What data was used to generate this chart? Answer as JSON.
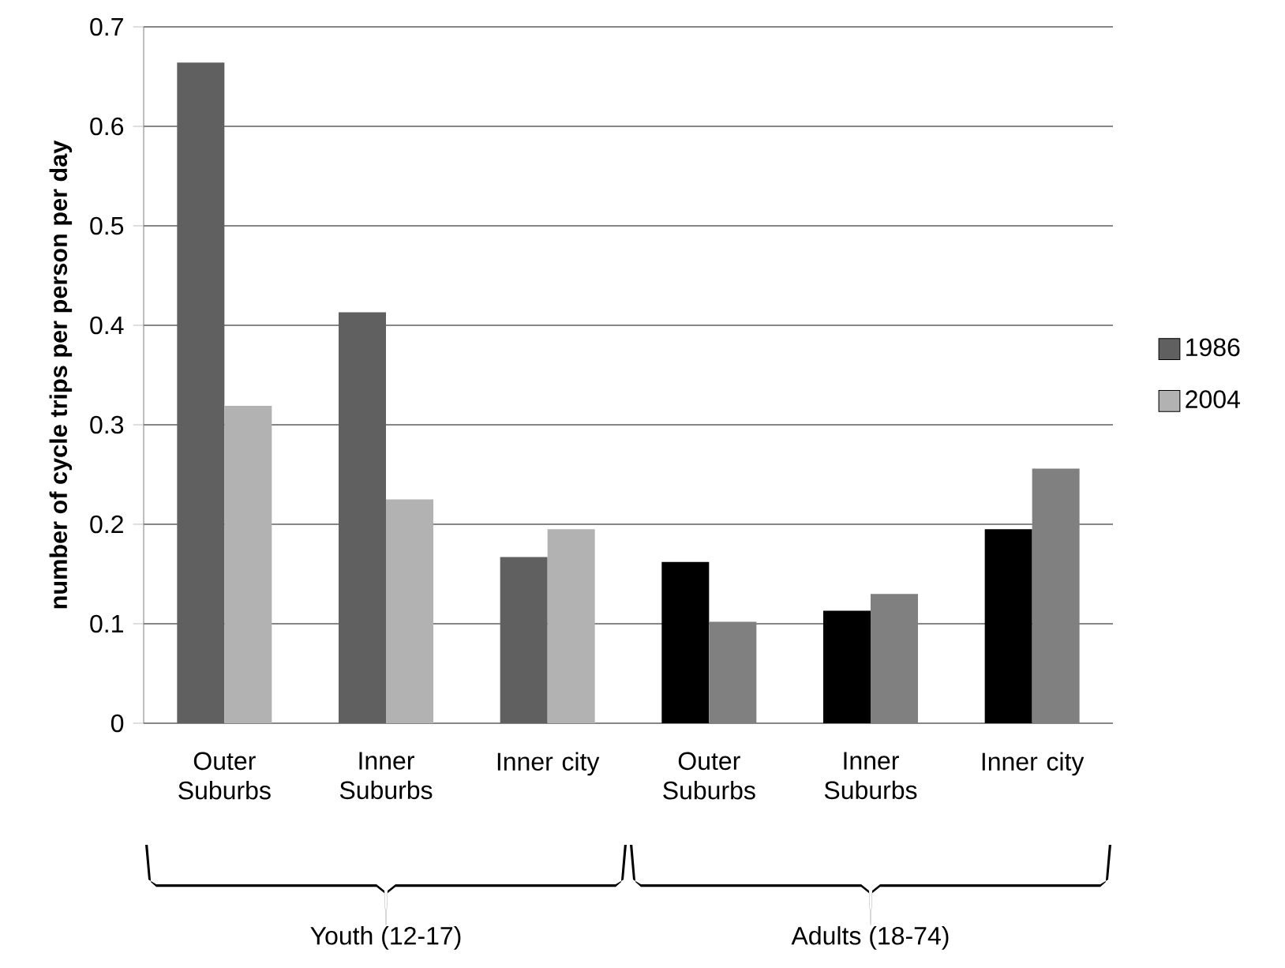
{
  "chart_data": {
    "type": "bar",
    "ylabel": "number of cycle  trips per person per day",
    "categories": [
      "Outer Suburbs",
      "Inner Suburbs",
      "Inner city",
      "Outer Suburbs",
      "Inner Suburbs",
      "Inner city"
    ],
    "series": [
      {
        "name": "1986",
        "color": "#606060",
        "colors": [
          "#606060",
          "#606060",
          "#606060",
          "#000000",
          "#000000",
          "#000000"
        ],
        "values": [
          0.664,
          0.413,
          0.167,
          0.162,
          0.113,
          0.195
        ]
      },
      {
        "name": "2004",
        "color": "#b2b2b2",
        "colors": [
          "#b2b2b2",
          "#b2b2b2",
          "#b2b2b2",
          "#808080",
          "#808080",
          "#808080"
        ],
        "values": [
          0.319,
          0.225,
          0.195,
          0.102,
          0.13,
          0.256
        ]
      }
    ],
    "ylim": [
      0,
      0.7
    ],
    "yticks": [
      0,
      0.1,
      0.2,
      0.3,
      0.4,
      0.5,
      0.6,
      0.7
    ],
    "grid": "y",
    "legend": "right",
    "annotations": [
      "Youth (12-17)",
      "Adults (18-74)"
    ]
  }
}
